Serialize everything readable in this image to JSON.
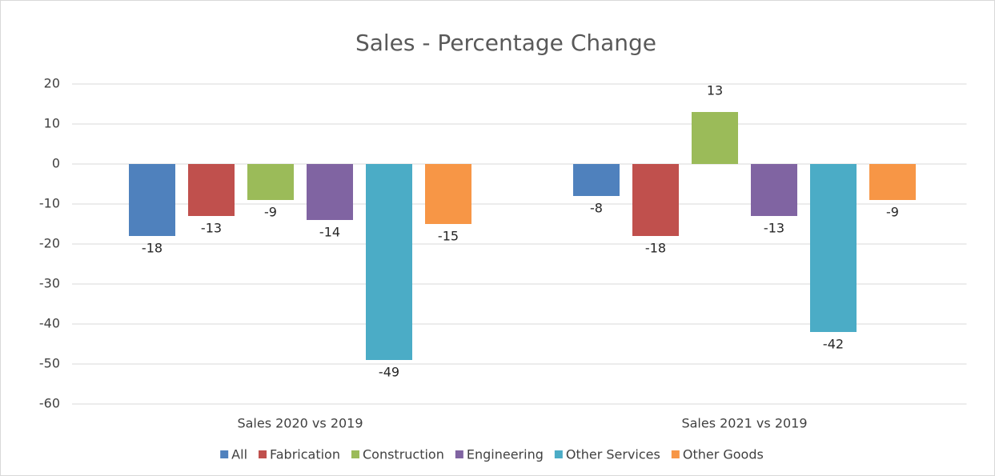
{
  "chart_data": {
    "type": "bar",
    "title": "Sales - Percentage Change",
    "categories": [
      "Sales 2020 vs 2019",
      "Sales 2021 vs 2019"
    ],
    "series": [
      {
        "name": "All",
        "color": "#4f81bd",
        "values": [
          -18,
          -8
        ]
      },
      {
        "name": "Fabrication",
        "color": "#c0504d",
        "values": [
          -13,
          -18
        ]
      },
      {
        "name": "Construction",
        "color": "#9bbb59",
        "values": [
          -9,
          13
        ]
      },
      {
        "name": "Engineering",
        "color": "#8064a2",
        "values": [
          -14,
          -13
        ]
      },
      {
        "name": "Other Services",
        "color": "#4bacc6",
        "values": [
          -49,
          -42
        ]
      },
      {
        "name": "Other Goods",
        "color": "#f79646",
        "values": [
          -15,
          -9
        ]
      }
    ],
    "ylim": [
      -60,
      20
    ],
    "yticks": [
      -60,
      -50,
      -40,
      -30,
      -20,
      -10,
      0,
      10,
      20
    ],
    "grid": true,
    "legend": "bottom"
  }
}
